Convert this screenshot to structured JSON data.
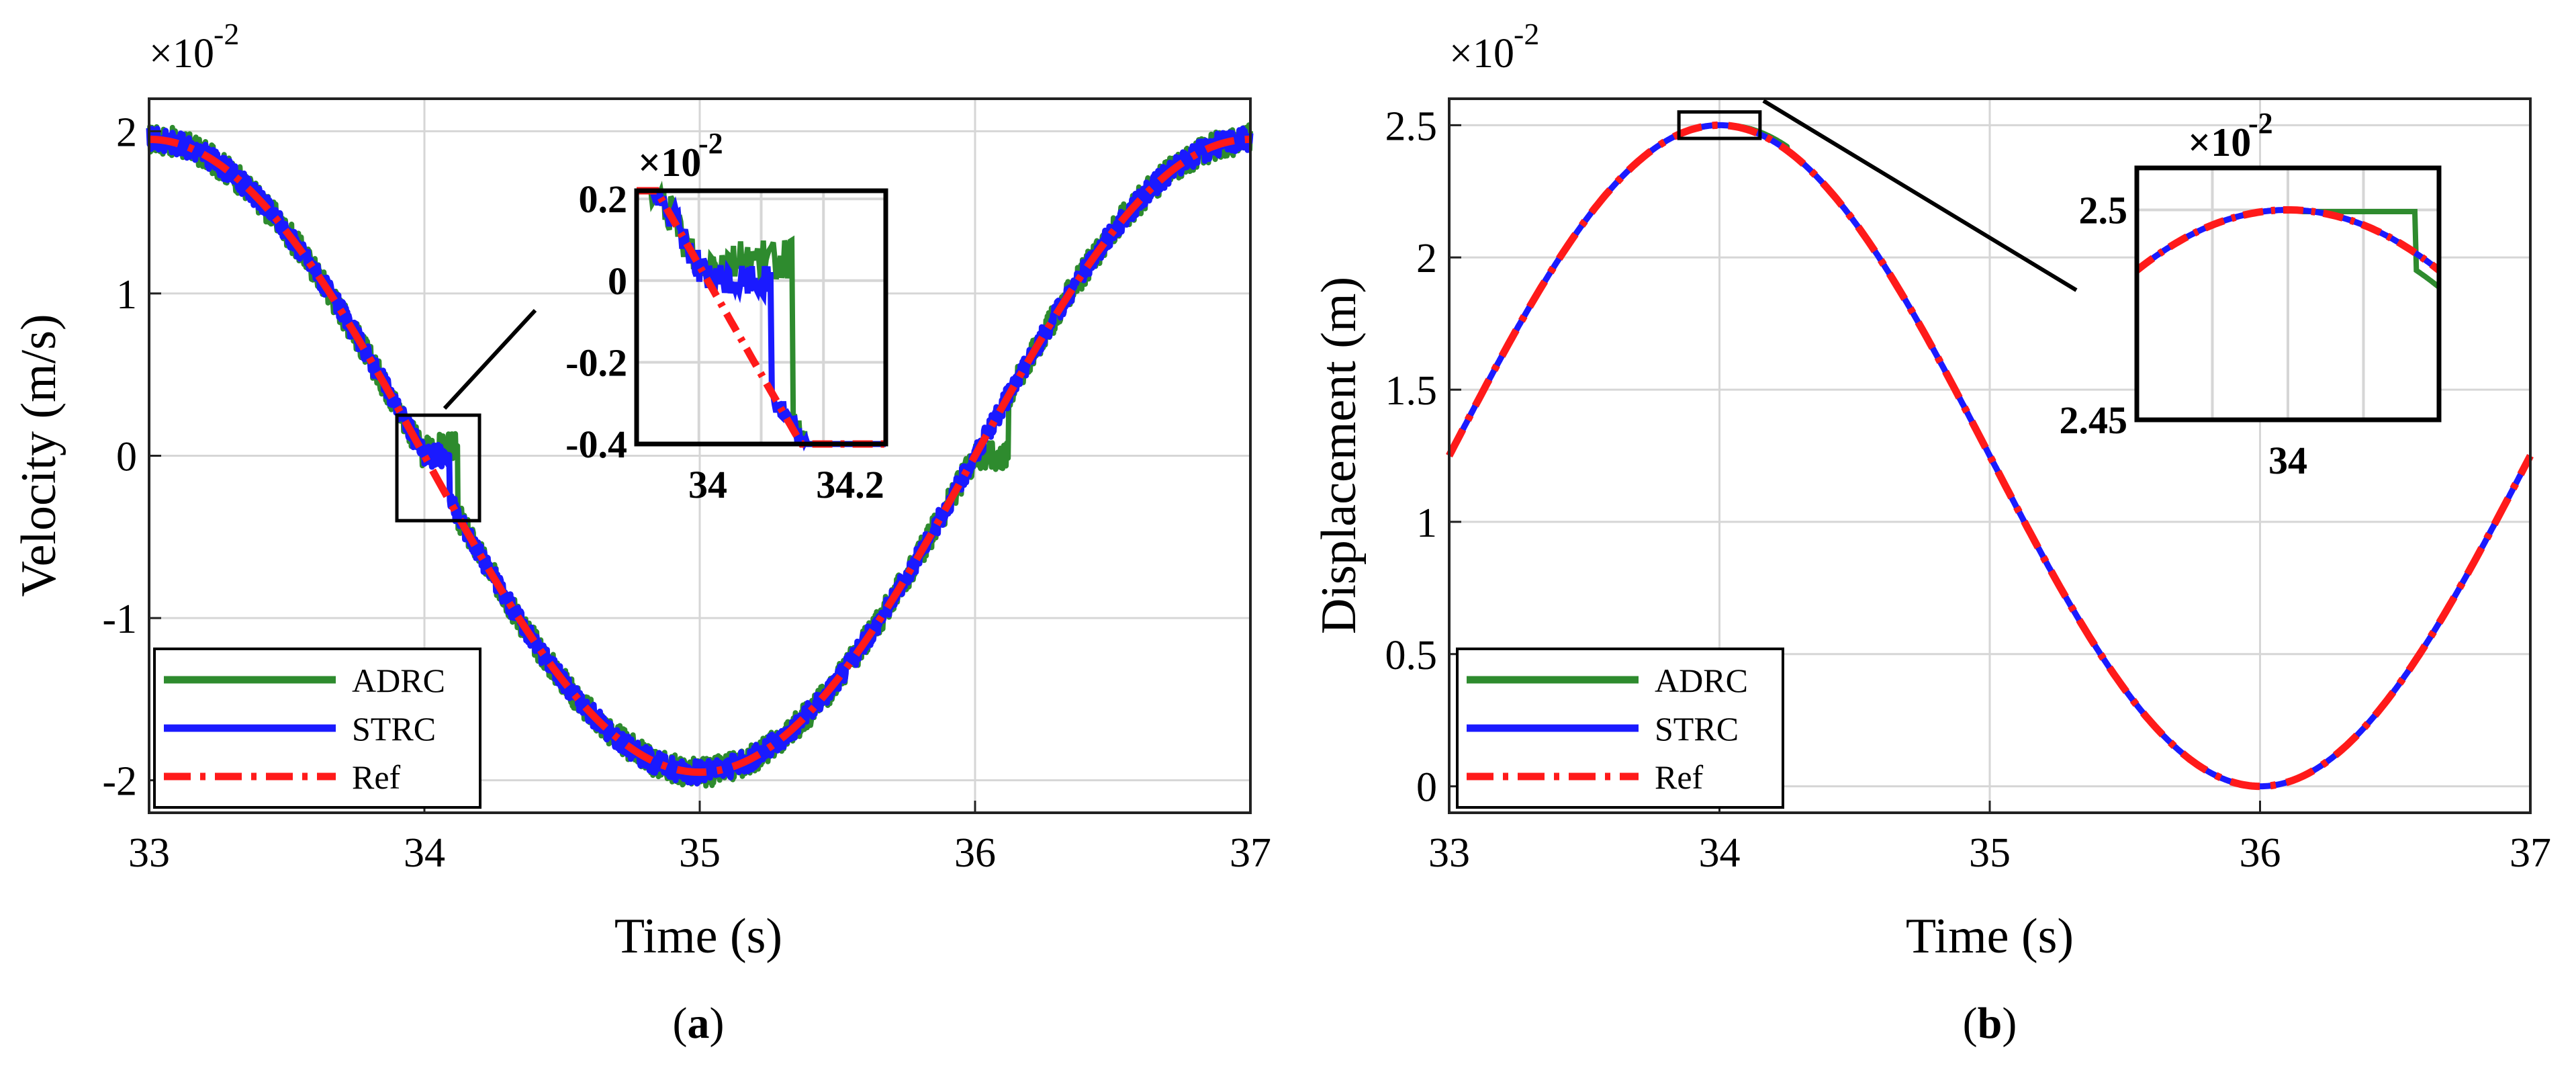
{
  "figure": {
    "captions": {
      "a_open": "(",
      "a_letter": "a",
      "a_close": ")",
      "b_open": "(",
      "b_letter": "b",
      "b_close": ")"
    }
  },
  "chart_data": [
    {
      "type": "line",
      "panel": "a",
      "xlabel": "Time (s)",
      "ylabel": "Velocity (m/s)",
      "y_multiplier": "×10",
      "y_exponent": "-2",
      "xlim": [
        33,
        37
      ],
      "ylim": [
        -2.2,
        2.2
      ],
      "xticks": [
        33,
        34,
        35,
        36,
        37
      ],
      "xtick_labels": [
        "33",
        "34",
        "35",
        "36",
        "37"
      ],
      "yticks": [
        -2,
        -1,
        0,
        1,
        2
      ],
      "ytick_labels": [
        "-2",
        "-1",
        "0",
        "1",
        "2"
      ],
      "grid": true,
      "legend_position": "bottom-left",
      "series": [
        {
          "name": "ADRC",
          "color": "#2e8b2e",
          "style": "solid",
          "description": "cosine velocity with high-frequency noise and step lag near zero crossings",
          "x": [
            33.0,
            33.5,
            34.0,
            34.08,
            34.12,
            34.5,
            35.0,
            35.5,
            36.0,
            36.08,
            36.12,
            36.5,
            37.0
          ],
          "y": [
            1.95,
            1.4,
            0.05,
            0.05,
            -0.3,
            -1.4,
            -1.97,
            -1.4,
            0.0,
            0.0,
            0.3,
            1.4,
            1.95
          ]
        },
        {
          "name": "STRC",
          "color": "#1a1aff",
          "style": "solid",
          "x": [
            33.0,
            33.5,
            34.0,
            34.1,
            34.5,
            35.0,
            35.5,
            36.0,
            36.5,
            37.0
          ],
          "y": [
            1.95,
            1.4,
            0.0,
            -0.2,
            -1.4,
            -1.97,
            -1.4,
            0.0,
            1.4,
            1.95
          ]
        },
        {
          "name": "Ref",
          "color": "#ff1a1a",
          "style": "dashdot",
          "x": [
            33.0,
            33.5,
            34.0,
            34.5,
            35.0,
            35.5,
            36.0,
            36.5,
            37.0
          ],
          "y": [
            1.95,
            1.38,
            0.0,
            -1.38,
            -1.95,
            -1.38,
            0.0,
            1.38,
            1.95
          ]
        }
      ],
      "zoom_box": {
        "xlim": [
          33.9,
          34.2
        ],
        "ylim": [
          -0.4,
          0.25
        ]
      },
      "inset": {
        "xlim": [
          33.9,
          34.25
        ],
        "ylim": [
          -0.4,
          0.22
        ],
        "xticks": [
          34,
          34.2
        ],
        "xtick_labels": [
          "34",
          "34.2"
        ],
        "yticks": [
          -0.4,
          -0.2,
          0,
          0.2
        ],
        "ytick_labels": [
          "-0.4",
          "-0.2",
          "0",
          "0.2"
        ],
        "y_multiplier": "×10",
        "y_exponent": "-2"
      }
    },
    {
      "type": "line",
      "panel": "b",
      "xlabel": "Time (s)",
      "ylabel": "Displacement (m)",
      "y_multiplier": "×10",
      "y_exponent": "-2",
      "xlim": [
        33,
        37
      ],
      "ylim": [
        -0.1,
        2.6
      ],
      "xticks": [
        33,
        34,
        35,
        36,
        37
      ],
      "xtick_labels": [
        "33",
        "34",
        "35",
        "36",
        "37"
      ],
      "yticks": [
        0,
        0.5,
        1,
        1.5,
        2,
        2.5
      ],
      "ytick_labels": [
        "0",
        "0.5",
        "1",
        "1.5",
        "2",
        "2.5"
      ],
      "grid": true,
      "legend_position": "bottom-left",
      "series": [
        {
          "name": "ADRC",
          "color": "#2e8b2e",
          "style": "solid",
          "x": [
            33.0,
            33.5,
            34.0,
            34.5,
            35.0,
            35.5,
            36.0,
            36.5,
            37.0
          ],
          "y": [
            1.25,
            2.13,
            2.5,
            2.13,
            1.25,
            0.37,
            0.0,
            0.37,
            1.25
          ]
        },
        {
          "name": "STRC",
          "color": "#1a1aff",
          "style": "solid",
          "x": [
            33.0,
            33.5,
            34.0,
            34.5,
            35.0,
            35.5,
            36.0,
            36.5,
            37.0
          ],
          "y": [
            1.25,
            2.13,
            2.5,
            2.13,
            1.25,
            0.37,
            0.0,
            0.37,
            1.25
          ]
        },
        {
          "name": "Ref",
          "color": "#ff1a1a",
          "style": "dashdot",
          "x": [
            33.0,
            33.5,
            34.0,
            34.5,
            35.0,
            35.5,
            36.0,
            36.5,
            37.0
          ],
          "y": [
            1.25,
            2.13,
            2.5,
            2.13,
            1.25,
            0.37,
            0.0,
            0.37,
            1.25
          ]
        }
      ],
      "zoom_box": {
        "xlim": [
          33.85,
          34.15
        ],
        "ylim": [
          2.45,
          2.55
        ]
      },
      "inset": {
        "xlim": [
          33.8,
          34.2
        ],
        "ylim": [
          2.45,
          2.51
        ],
        "xticks": [
          34
        ],
        "xtick_labels": [
          "34"
        ],
        "yticks": [
          2.45,
          2.5
        ],
        "ytick_labels": [
          "2.45",
          "2.5"
        ],
        "y_multiplier": "×10",
        "y_exponent": "-2"
      }
    }
  ]
}
